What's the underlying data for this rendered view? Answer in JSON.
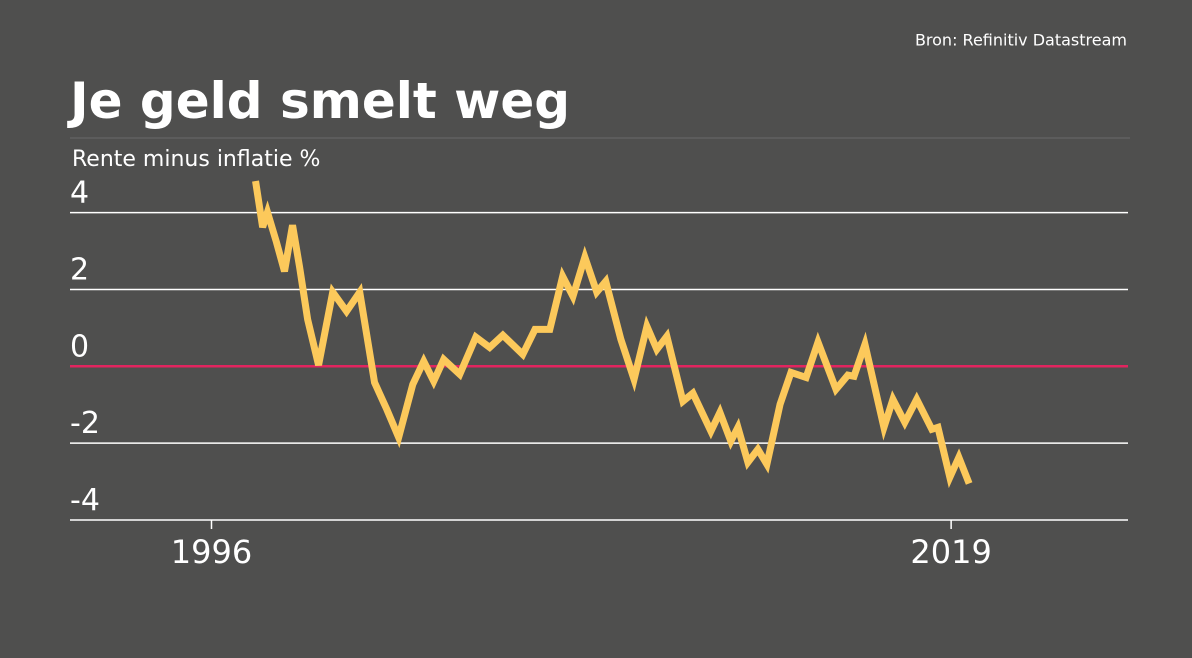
{
  "chart_data": {
    "type": "line",
    "title": "Je geld smelt weg",
    "source": "Bron: Refinitiv Datastream",
    "y_label": "Rente minus inflatie %",
    "xlim": [
      1991.6,
      2024.5
    ],
    "xticks": [
      1996,
      2019
    ],
    "ylim": [
      -4,
      4.9
    ],
    "yticks": [
      4,
      2,
      0,
      -2,
      -4
    ],
    "grid": true,
    "grid_color": "#ffffff",
    "zero_line_color": "#e2245f",
    "series": [
      {
        "name": null,
        "color": "#fcc95b",
        "x": [
          1997.37,
          1997.59,
          1997.74,
          1998.02,
          1998.27,
          1998.52,
          1998.74,
          1998.99,
          1999.33,
          1999.77,
          2000.2,
          2000.61,
          2001.07,
          2001.45,
          2001.82,
          2002.26,
          2002.6,
          2002.91,
          2003.22,
          2003.72,
          2004.22,
          2004.65,
          2005.06,
          2005.68,
          2006.06,
          2006.52,
          2006.92,
          2007.24,
          2007.61,
          2007.98,
          2008.26,
          2008.73,
          2009.14,
          2009.54,
          2009.85,
          2010.16,
          2010.66,
          2010.97,
          2011.53,
          2011.81,
          2012.15,
          2012.37,
          2012.68,
          2012.99,
          2013.27,
          2013.68,
          2014.02,
          2014.49,
          2014.86,
          2015.42,
          2015.79,
          2015.98,
          2016.32,
          2016.91,
          2017.19,
          2017.56,
          2017.93,
          2018.4,
          2018.59,
          2018.96,
          2019.24,
          2019.56
        ],
        "values": [
          4.82,
          3.62,
          4.01,
          3.23,
          2.47,
          3.67,
          2.58,
          1.22,
          0.03,
          1.93,
          1.43,
          1.93,
          -0.42,
          -1.12,
          -1.85,
          -0.47,
          0.13,
          -0.39,
          0.18,
          -0.21,
          0.76,
          0.49,
          0.81,
          0.31,
          0.96,
          0.96,
          2.34,
          1.82,
          2.84,
          1.93,
          2.21,
          0.7,
          -0.34,
          1.04,
          0.44,
          0.78,
          -0.91,
          -0.7,
          -1.69,
          -1.2,
          -1.95,
          -1.59,
          -2.5,
          -2.16,
          -2.55,
          -0.99,
          -0.16,
          -0.29,
          0.63,
          -0.6,
          -0.23,
          -0.26,
          0.57,
          -1.59,
          -0.86,
          -1.46,
          -0.86,
          -1.64,
          -1.59,
          -2.89,
          -2.37,
          -3.05
        ]
      }
    ]
  }
}
